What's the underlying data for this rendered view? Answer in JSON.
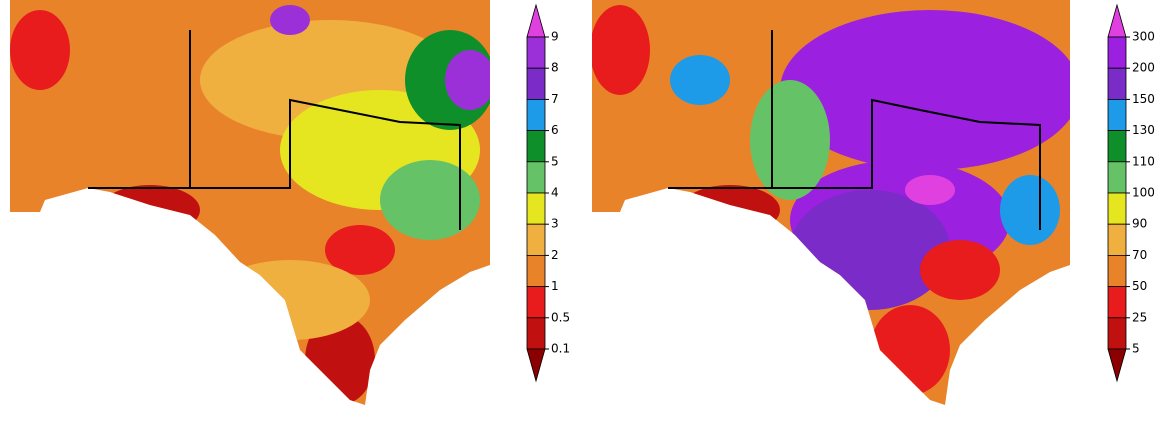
{
  "maps": [
    {
      "colorbar": {
        "labels": [
          "9",
          "8",
          "7",
          "6",
          "5",
          "4",
          "3",
          "2",
          "1",
          "0.5",
          "0.1"
        ],
        "colors": [
          "#e040e0",
          "#9b30d8",
          "#7a2bc8",
          "#1e9be8",
          "#0f8f2a",
          "#66c266",
          "#e6e620",
          "#f0b040",
          "#e8832a",
          "#e81c1c",
          "#c01010",
          "#8b0000"
        ]
      }
    },
    {
      "colorbar": {
        "labels": [
          "300",
          "200",
          "150",
          "130",
          "110",
          "100",
          "90",
          "70",
          "50",
          "25",
          "5"
        ],
        "colors": [
          "#e040e0",
          "#9b20e0",
          "#7a2bc8",
          "#1e9be8",
          "#0f8f2a",
          "#66c266",
          "#e6e620",
          "#f0b040",
          "#e8832a",
          "#e81c1c",
          "#c01010",
          "#8b0000"
        ]
      }
    }
  ]
}
